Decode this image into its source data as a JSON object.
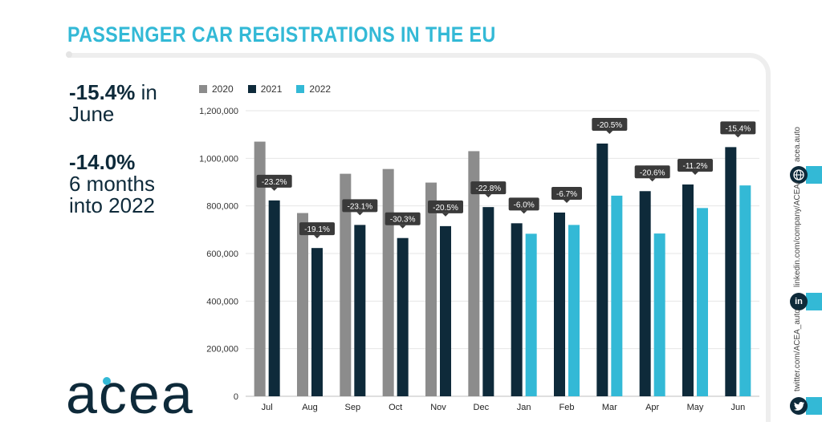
{
  "header": {
    "title": "PASSENGER CAR REGISTRATIONS IN THE EU"
  },
  "stats": {
    "june_value": "-15.4%",
    "june_suffix": " in",
    "june_line2": "June",
    "ytd_value": "-14.0%",
    "ytd_line2": "6 months",
    "ytd_line3": "into 2022"
  },
  "logo": {
    "text": "acea"
  },
  "social": {
    "web": "acea.auto",
    "linkedin": "linkedin.com/company/ACEA/",
    "twitter": "twitter.com/ACEA_auto",
    "web_icon": "globe-icon",
    "linkedin_icon": "linkedin-icon",
    "linkedin_glyph": "in",
    "twitter_icon": "twitter-icon"
  },
  "colors": {
    "accent": "#33b9d6",
    "dark": "#0e2a3a",
    "gray": "#8c8c8c",
    "label_bg": "#3a3a3a"
  },
  "chart_data": {
    "type": "bar",
    "categories": [
      "Jul",
      "Aug",
      "Sep",
      "Oct",
      "Nov",
      "Dec",
      "Jan",
      "Feb",
      "Mar",
      "Apr",
      "May",
      "Jun"
    ],
    "series": [
      {
        "name": "2020",
        "color": "#8c8c8c",
        "values": [
          1070000,
          770000,
          935000,
          955000,
          898000,
          1030000,
          null,
          null,
          null,
          null,
          null,
          null
        ]
      },
      {
        "name": "2021",
        "color": "#0e2a3a",
        "values": [
          823000,
          623000,
          720000,
          665000,
          715000,
          795000,
          727000,
          772000,
          1062000,
          862000,
          890000,
          1047000
        ]
      },
      {
        "name": "2022",
        "color": "#33b9d6",
        "values": [
          null,
          null,
          null,
          null,
          null,
          null,
          683000,
          720000,
          843000,
          684000,
          791000,
          886000
        ]
      }
    ],
    "annotations": [
      "-23.2%",
      "-19.1%",
      "-23.1%",
      "-30.3%",
      "-20.5%",
      "-22.8%",
      "-6.0%",
      "-6.7%",
      "-20.5%",
      "-20.6%",
      "-11.2%",
      "-15.4%"
    ],
    "ylim": [
      0,
      1200000
    ],
    "yticks": [
      "0",
      "200,000",
      "400,000",
      "600,000",
      "800,000",
      "1,000,000",
      "1,200,000"
    ],
    "xlabel": "",
    "ylabel": "",
    "grid": true,
    "legend_position": "top-left"
  }
}
